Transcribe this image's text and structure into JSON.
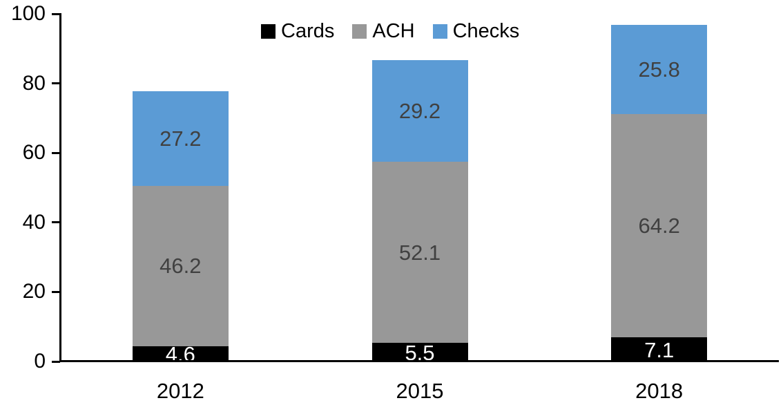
{
  "chart_data": {
    "type": "bar",
    "stacked": true,
    "title": "",
    "categories": [
      "2012",
      "2015",
      "2018"
    ],
    "series": [
      {
        "name": "Cards",
        "color": "#000000",
        "label_color": "#FFFFFF",
        "values": [
          4.6,
          5.5,
          7.1
        ],
        "labels": [
          "4.6",
          "5.5",
          "7.1"
        ]
      },
      {
        "name": "ACH",
        "color": "#989898",
        "label_color": "#404040",
        "values": [
          46.2,
          52.1,
          64.2
        ],
        "labels": [
          "46.2",
          "52.1",
          "64.2"
        ]
      },
      {
        "name": "Checks",
        "color": "#5B9BD5",
        "label_color": "#404040",
        "values": [
          27.2,
          29.2,
          25.8
        ],
        "labels": [
          "27.2",
          "29.2",
          "25.8"
        ]
      }
    ],
    "totals": [
      78.0,
      86.8,
      97.1
    ],
    "y_axis": {
      "min": 0,
      "max": 100,
      "tick_values": [
        0,
        20,
        40,
        60,
        80,
        100
      ],
      "tick_labels": [
        "0",
        "20",
        "40",
        "60",
        "80",
        "100"
      ]
    },
    "legend": {
      "position": "top",
      "entries": [
        "Cards",
        "ACH",
        "Checks"
      ]
    },
    "grid": false,
    "colors": {
      "axis": "#000000",
      "background": "#FFFFFF"
    }
  }
}
